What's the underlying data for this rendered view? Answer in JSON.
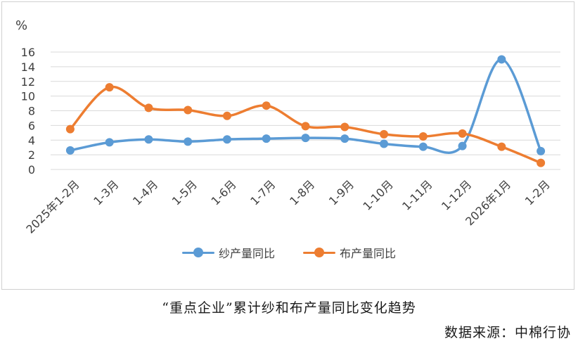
{
  "unit": "%",
  "caption": "“重点企业”累计纱和布产量同比变化趋势",
  "source": "数据来源：中棉行协",
  "colors": {
    "series1": "#5b9bd5",
    "series2": "#ed7d31",
    "grid": "#d9d9d9",
    "axis_text": "#404040"
  },
  "chart_data": {
    "type": "line",
    "categories": [
      "2025年1-2月",
      "1-3月",
      "1-4月",
      "1-5月",
      "1-6月",
      "1-7月",
      "1-8月",
      "1-9月",
      "1-10月",
      "1-11月",
      "1-12月",
      "2026年1月",
      "1-2月"
    ],
    "series": [
      {
        "name": "纱产量同比",
        "values": [
          2.6,
          3.7,
          4.1,
          3.8,
          4.1,
          4.2,
          4.3,
          4.2,
          3.5,
          3.1,
          3.2,
          15.0,
          2.5
        ]
      },
      {
        "name": "布产量同比",
        "values": [
          5.5,
          11.2,
          8.4,
          8.1,
          7.3,
          8.7,
          5.9,
          5.8,
          4.8,
          4.5,
          4.9,
          3.1,
          0.9
        ]
      }
    ],
    "ylim": [
      0,
      16
    ],
    "yticks": [
      0,
      2,
      4,
      6,
      8,
      10,
      12,
      14,
      16
    ],
    "grid": true,
    "legend_position": "bottom",
    "smooth": true
  }
}
